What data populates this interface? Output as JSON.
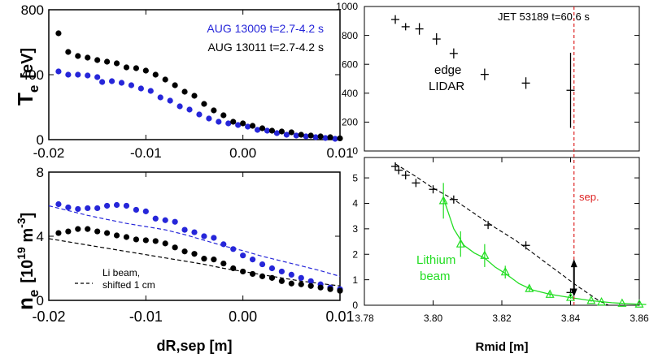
{
  "chart_data": [
    {
      "panel": "top-left",
      "type": "scatter",
      "xlim": [
        -0.02,
        0.01
      ],
      "ylim": [
        0,
        800
      ],
      "xticks": [
        "-0.02",
        "-0.01",
        "0.00",
        "0.01"
      ],
      "yticks": [
        "0",
        "400",
        "800"
      ],
      "ylabel_main": "T",
      "ylabel_sub": "e",
      "ylabel_unit": "[eV]",
      "series": [
        {
          "name": "AUG 13009 t=2.7-4.2 s",
          "color": "#2626d9",
          "points": [
            [
              -0.019,
              420
            ],
            [
              -0.018,
              400
            ],
            [
              -0.017,
              400
            ],
            [
              -0.016,
              395
            ],
            [
              -0.015,
              385
            ],
            [
              -0.0145,
              355
            ],
            [
              -0.0135,
              360
            ],
            [
              -0.0125,
              350
            ],
            [
              -0.0115,
              335
            ],
            [
              -0.0105,
              315
            ],
            [
              -0.0095,
              300
            ],
            [
              -0.0085,
              260
            ],
            [
              -0.0075,
              240
            ],
            [
              -0.0065,
              205
            ],
            [
              -0.0055,
              185
            ],
            [
              -0.0045,
              155
            ],
            [
              -0.0035,
              130
            ],
            [
              -0.0025,
              110
            ],
            [
              -0.0015,
              100
            ],
            [
              -0.0005,
              90
            ],
            [
              0.0005,
              80
            ],
            [
              0.0015,
              60
            ],
            [
              0.0025,
              55
            ],
            [
              0.0035,
              40
            ],
            [
              0.0045,
              30
            ],
            [
              0.0055,
              25
            ],
            [
              0.0065,
              20
            ],
            [
              0.0075,
              15
            ],
            [
              0.0085,
              10
            ],
            [
              0.0095,
              5
            ]
          ]
        },
        {
          "name": "AUG 13011 t=2.7-4.2 s",
          "color": "#000000",
          "points": [
            [
              -0.019,
              655
            ],
            [
              -0.018,
              540
            ],
            [
              -0.017,
              515
            ],
            [
              -0.016,
              505
            ],
            [
              -0.015,
              490
            ],
            [
              -0.014,
              480
            ],
            [
              -0.013,
              470
            ],
            [
              -0.012,
              445
            ],
            [
              -0.011,
              440
            ],
            [
              -0.01,
              425
            ],
            [
              -0.009,
              400
            ],
            [
              -0.008,
              370
            ],
            [
              -0.007,
              335
            ],
            [
              -0.006,
              295
            ],
            [
              -0.005,
              270
            ],
            [
              -0.004,
              220
            ],
            [
              -0.003,
              180
            ],
            [
              -0.002,
              150
            ],
            [
              -0.001,
              110
            ],
            [
              0.0,
              100
            ],
            [
              0.001,
              85
            ],
            [
              0.002,
              70
            ],
            [
              0.003,
              55
            ],
            [
              0.004,
              50
            ],
            [
              0.005,
              45
            ],
            [
              0.006,
              30
            ],
            [
              0.007,
              25
            ],
            [
              0.008,
              20
            ],
            [
              0.009,
              15
            ],
            [
              0.01,
              8
            ]
          ]
        }
      ]
    },
    {
      "panel": "bottom-left",
      "type": "scatter",
      "xlim": [
        -0.02,
        0.01
      ],
      "ylim": [
        0,
        8
      ],
      "xticks": [
        "-0.02",
        "-0.01",
        "0.00",
        "0.01"
      ],
      "yticks": [
        "0",
        "4",
        "8"
      ],
      "xlabel": "dR,sep [m]",
      "ylabel_main": "n",
      "ylabel_sub": "e",
      "ylabel_unit_pre": "[10",
      "ylabel_unit_exp1": "19",
      "ylabel_unit_mid": " m",
      "ylabel_unit_exp2": "-3",
      "ylabel_unit_post": "]",
      "legend_line1": "Li beam,",
      "legend_line2": "shifted 1 cm",
      "series": [
        {
          "name": "AUG 13009 t=2.7-4.2 s",
          "color": "#2626d9",
          "points": [
            [
              -0.019,
              6.0
            ],
            [
              -0.018,
              5.8
            ],
            [
              -0.017,
              5.7
            ],
            [
              -0.016,
              5.75
            ],
            [
              -0.015,
              5.75
            ],
            [
              -0.014,
              5.9
            ],
            [
              -0.013,
              5.95
            ],
            [
              -0.012,
              5.9
            ],
            [
              -0.011,
              5.65
            ],
            [
              -0.01,
              5.55
            ],
            [
              -0.009,
              5.1
            ],
            [
              -0.008,
              5.0
            ],
            [
              -0.007,
              4.9
            ],
            [
              -0.006,
              4.4
            ],
            [
              -0.005,
              4.25
            ],
            [
              -0.004,
              4.0
            ],
            [
              -0.003,
              3.9
            ],
            [
              -0.002,
              3.5
            ],
            [
              -0.001,
              3.2
            ],
            [
              0.0,
              2.8
            ],
            [
              0.001,
              2.55
            ],
            [
              0.002,
              2.25
            ],
            [
              0.003,
              2.0
            ],
            [
              0.004,
              1.8
            ],
            [
              0.005,
              1.6
            ],
            [
              0.006,
              1.4
            ],
            [
              0.007,
              1.2
            ],
            [
              0.008,
              1.0
            ],
            [
              0.009,
              0.8
            ],
            [
              0.01,
              0.7
            ]
          ]
        },
        {
          "name": "AUG 13011 t=2.7-4.2 s",
          "color": "#000000",
          "points": [
            [
              -0.019,
              4.2
            ],
            [
              -0.018,
              4.3
            ],
            [
              -0.017,
              4.45
            ],
            [
              -0.016,
              4.45
            ],
            [
              -0.015,
              4.3
            ],
            [
              -0.014,
              4.2
            ],
            [
              -0.013,
              4.05
            ],
            [
              -0.012,
              3.95
            ],
            [
              -0.011,
              3.8
            ],
            [
              -0.01,
              3.75
            ],
            [
              -0.009,
              3.7
            ],
            [
              -0.008,
              3.55
            ],
            [
              -0.007,
              3.3
            ],
            [
              -0.006,
              3.05
            ],
            [
              -0.005,
              2.9
            ],
            [
              -0.004,
              2.6
            ],
            [
              -0.003,
              2.55
            ],
            [
              -0.002,
              2.3
            ],
            [
              -0.001,
              2.0
            ],
            [
              0.0,
              1.8
            ],
            [
              0.001,
              1.65
            ],
            [
              0.002,
              1.5
            ],
            [
              0.003,
              1.4
            ],
            [
              0.004,
              1.2
            ],
            [
              0.005,
              1.05
            ],
            [
              0.006,
              1.0
            ],
            [
              0.007,
              0.9
            ],
            [
              0.008,
              0.8
            ],
            [
              0.009,
              0.7
            ],
            [
              0.01,
              0.6
            ]
          ]
        },
        {
          "name": "Li beam, shifted 1 cm (13009)",
          "style": "dashed",
          "color": "#2626d9",
          "points": [
            [
              -0.02,
              5.9
            ],
            [
              -0.018,
              5.6
            ],
            [
              -0.016,
              5.3
            ],
            [
              -0.014,
              5.05
            ],
            [
              -0.012,
              4.8
            ],
            [
              -0.01,
              4.6
            ],
            [
              -0.008,
              4.4
            ],
            [
              -0.006,
              4.1
            ],
            [
              -0.004,
              3.75
            ],
            [
              -0.002,
              3.4
            ],
            [
              0.0,
              3.1
            ],
            [
              0.002,
              2.75
            ],
            [
              0.004,
              2.45
            ],
            [
              0.006,
              2.15
            ],
            [
              0.008,
              1.85
            ],
            [
              0.01,
              1.5
            ]
          ]
        },
        {
          "name": "Li beam, shifted 1 cm (13011)",
          "style": "dashed",
          "color": "#000000",
          "points": [
            [
              -0.02,
              3.85
            ],
            [
              -0.018,
              3.65
            ],
            [
              -0.016,
              3.45
            ],
            [
              -0.014,
              3.25
            ],
            [
              -0.012,
              3.05
            ],
            [
              -0.01,
              2.85
            ],
            [
              -0.008,
              2.65
            ],
            [
              -0.006,
              2.45
            ],
            [
              -0.004,
              2.25
            ],
            [
              -0.002,
              2.0
            ],
            [
              0.0,
              1.8
            ],
            [
              0.002,
              1.6
            ],
            [
              0.004,
              1.4
            ],
            [
              0.006,
              1.2
            ],
            [
              0.008,
              1.05
            ],
            [
              0.01,
              0.9
            ]
          ]
        }
      ]
    },
    {
      "panel": "top-right",
      "type": "scatter",
      "xlim": [
        3.78,
        3.86
      ],
      "ylim": [
        0,
        1000
      ],
      "yticks": [
        "0",
        "200",
        "400",
        "600",
        "800",
        "1000"
      ],
      "annotation": "JET 53189 t=60.6 s",
      "label_line1": "edge",
      "label_line2": "LIDAR",
      "series": [
        {
          "name": "edge LIDAR",
          "color": "#000000",
          "points": [
            [
              3.789,
              910,
              30
            ],
            [
              3.792,
              860,
              25
            ],
            [
              3.796,
              845,
              40
            ],
            [
              3.801,
              775,
              40
            ],
            [
              3.806,
              675,
              35
            ],
            [
              3.815,
              530,
              40
            ],
            [
              3.827,
              470,
              40
            ],
            [
              3.84,
              420,
              260
            ]
          ]
        }
      ]
    },
    {
      "panel": "bottom-right",
      "type": "line",
      "xlim": [
        3.78,
        3.86
      ],
      "ylim": [
        0,
        5.8
      ],
      "xticks": [
        "3.78",
        "3.80",
        "3.82",
        "3.84",
        "3.86"
      ],
      "yticks": [
        "0",
        "1",
        "2",
        "3",
        "4",
        "5"
      ],
      "xlabel": "Rmid [m]",
      "sep_label": "sep.",
      "sep_x": 3.841,
      "lithium_line1": "Lithium",
      "lithium_line2": "beam",
      "series": [
        {
          "name": "Thomson crosses",
          "color": "#000000",
          "points": [
            [
              3.789,
              5.45
            ],
            [
              3.79,
              5.3
            ],
            [
              3.792,
              5.1
            ],
            [
              3.795,
              4.8
            ],
            [
              3.8,
              4.55
            ],
            [
              3.806,
              4.15
            ],
            [
              3.816,
              3.15
            ],
            [
              3.827,
              2.35
            ],
            [
              3.84,
              0.5
            ]
          ]
        },
        {
          "name": "black dashed fit",
          "style": "dashed",
          "color": "#000000",
          "points": [
            [
              3.789,
              5.55
            ],
            [
              3.795,
              5.05
            ],
            [
              3.8,
              4.6
            ],
            [
              3.806,
              4.15
            ],
            [
              3.812,
              3.6
            ],
            [
              3.818,
              3.05
            ],
            [
              3.824,
              2.55
            ],
            [
              3.83,
              1.95
            ],
            [
              3.836,
              1.35
            ],
            [
              3.842,
              0.75
            ],
            [
              3.848,
              0.2
            ],
            [
              3.851,
              0.0
            ]
          ]
        },
        {
          "name": "Lithium beam",
          "color": "#22dd22",
          "points": [
            [
              3.803,
              4.1,
              0.7
            ],
            [
              3.808,
              2.4,
              0.5
            ],
            [
              3.815,
              1.95,
              0.45
            ],
            [
              3.821,
              1.3,
              0.25
            ],
            [
              3.828,
              0.65,
              0.1
            ],
            [
              3.834,
              0.42,
              0.08
            ],
            [
              3.84,
              0.3,
              0.05
            ],
            [
              3.846,
              0.18,
              0.04
            ],
            [
              3.849,
              0.12,
              0.03
            ],
            [
              3.855,
              0.07,
              0.02
            ],
            [
              3.86,
              0.04,
              0.02
            ]
          ]
        },
        {
          "name": "Lithium beam fit",
          "color": "#22dd22",
          "points": [
            [
              3.803,
              4.2
            ],
            [
              3.806,
              3.0
            ],
            [
              3.809,
              2.35
            ],
            [
              3.812,
              2.05
            ],
            [
              3.815,
              1.85
            ],
            [
              3.818,
              1.5
            ],
            [
              3.821,
              1.25
            ],
            [
              3.825,
              0.85
            ],
            [
              3.829,
              0.6
            ],
            [
              3.834,
              0.43
            ],
            [
              3.84,
              0.3
            ],
            [
              3.846,
              0.18
            ],
            [
              3.852,
              0.1
            ],
            [
              3.858,
              0.05
            ],
            [
              3.862,
              0.03
            ]
          ]
        }
      ]
    }
  ],
  "colors": {
    "blue": "#2626d9",
    "green": "#22dd22",
    "red_sep": "#dd2222",
    "black": "#000000"
  }
}
